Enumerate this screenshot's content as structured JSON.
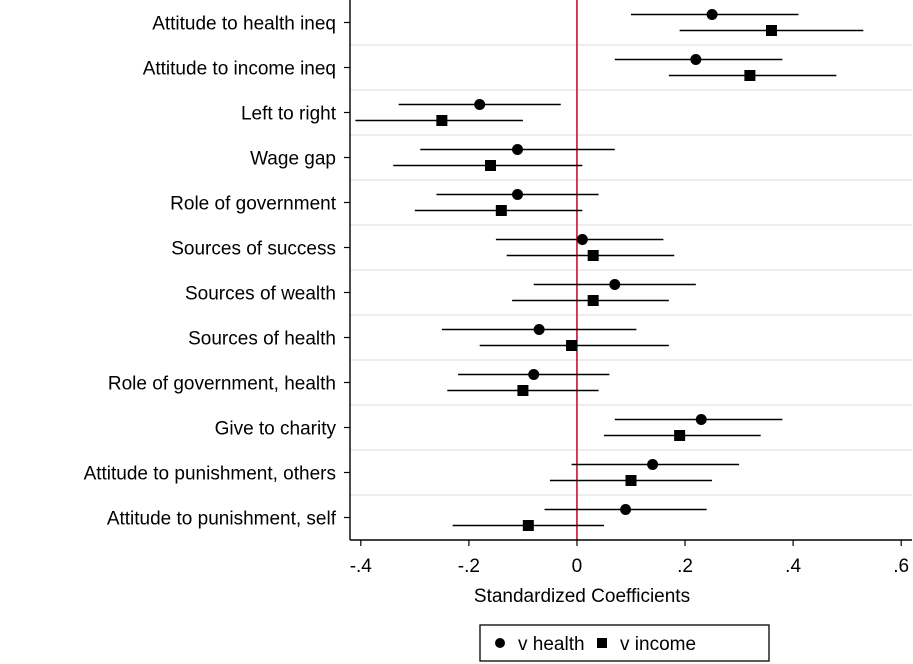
{
  "chart_data": {
    "type": "scatter",
    "subtype": "coefficient-plot-with-confidence-intervals",
    "orientation": "horizontal",
    "title": "",
    "xlabel": "Standardized Coefficients",
    "ylabel": "",
    "xlim": [
      -0.42,
      0.62
    ],
    "xticks": [
      -0.4,
      -0.2,
      0,
      0.2,
      0.4,
      0.6
    ],
    "xtick_labels": [
      "-.4",
      "-.2",
      "0",
      ".2",
      ".4",
      ".6"
    ],
    "reference_line": {
      "x": 0,
      "color": "#c8102e"
    },
    "grid": "horizontal",
    "legend_position": "bottom",
    "categories": [
      "Attitude to health ineq",
      "Attitude to income ineq",
      "Left to right",
      "Wage gap",
      "Role of government",
      "Sources of success",
      "Sources of wealth",
      "Sources of health",
      "Role of government, health",
      "Give to charity",
      "Attitude to punishment, others",
      "Attitude to punishment, self"
    ],
    "series": [
      {
        "name": "v health",
        "marker": "circle",
        "values": [
          0.25,
          0.22,
          -0.18,
          -0.11,
          -0.11,
          0.01,
          0.07,
          -0.07,
          -0.08,
          0.23,
          0.14,
          0.09
        ],
        "ci_low": [
          0.1,
          0.07,
          -0.33,
          -0.29,
          -0.26,
          -0.15,
          -0.08,
          -0.25,
          -0.22,
          0.07,
          -0.01,
          -0.06
        ],
        "ci_high": [
          0.41,
          0.38,
          -0.03,
          0.07,
          0.04,
          0.16,
          0.22,
          0.11,
          0.06,
          0.38,
          0.3,
          0.24
        ]
      },
      {
        "name": "v income",
        "marker": "square",
        "values": [
          0.36,
          0.32,
          -0.25,
          -0.16,
          -0.14,
          0.03,
          0.03,
          -0.01,
          -0.1,
          0.19,
          0.1,
          -0.09
        ],
        "ci_low": [
          0.19,
          0.17,
          -0.41,
          -0.34,
          -0.3,
          -0.13,
          -0.12,
          -0.18,
          -0.24,
          0.05,
          -0.05,
          -0.23
        ],
        "ci_high": [
          0.53,
          0.48,
          -0.1,
          0.01,
          0.01,
          0.18,
          0.17,
          0.17,
          0.04,
          0.34,
          0.25,
          0.05
        ]
      }
    ]
  }
}
